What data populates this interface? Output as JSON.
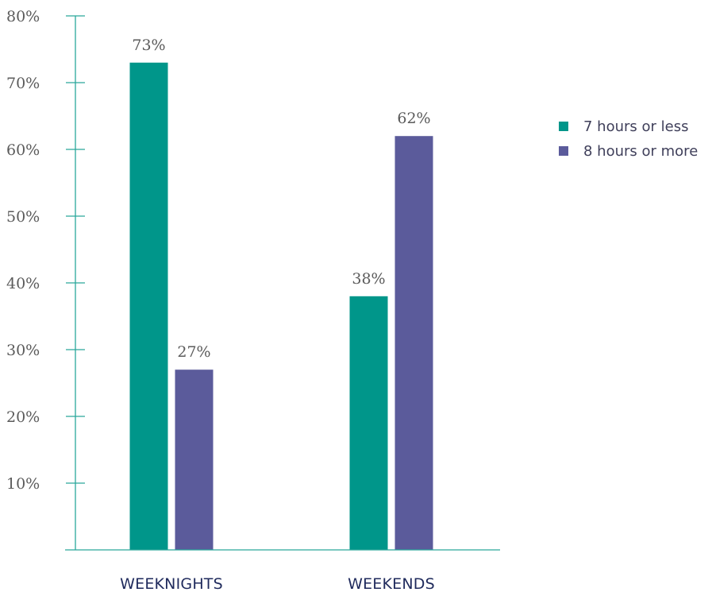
{
  "chart_data": {
    "type": "bar",
    "categories": [
      "WEEKNIGHTS",
      "WEEKENDS"
    ],
    "series": [
      {
        "name": "7 hours or less",
        "color": "#00968a",
        "values": [
          73,
          38
        ],
        "labels": [
          "73%",
          "38%"
        ]
      },
      {
        "name": "8 hours or more",
        "color": "#5b5b9b",
        "values": [
          27,
          62
        ],
        "labels": [
          "27%",
          "62%"
        ]
      }
    ],
    "ylim": [
      0,
      80
    ],
    "yticks": [
      10,
      20,
      30,
      40,
      50,
      60,
      70,
      80
    ],
    "ytick_labels": [
      "10%",
      "20%",
      "30%",
      "40%",
      "50%",
      "60%",
      "70%",
      "80%"
    ],
    "axis_color": "#2aa79b",
    "grid": false,
    "legend_position": "right",
    "title": "",
    "xlabel": "",
    "ylabel": ""
  }
}
